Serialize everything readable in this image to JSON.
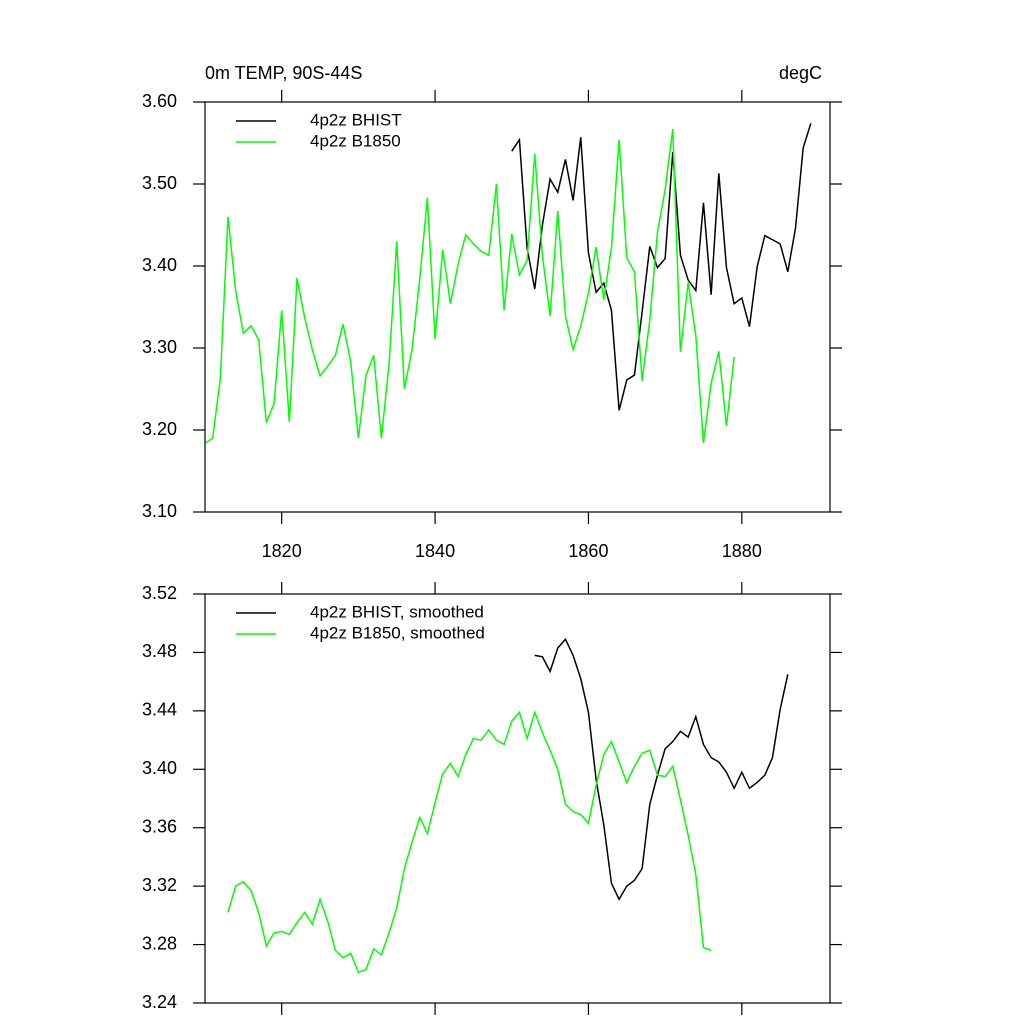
{
  "chart_data": [
    {
      "type": "line",
      "title": "0m TEMP, 90S-44S",
      "units_label": "degC",
      "x": [
        1810,
        1811,
        1812,
        1813,
        1814,
        1815,
        1816,
        1817,
        1818,
        1819,
        1820,
        1821,
        1822,
        1823,
        1824,
        1825,
        1826,
        1827,
        1828,
        1829,
        1830,
        1831,
        1832,
        1833,
        1834,
        1835,
        1836,
        1837,
        1838,
        1839,
        1840,
        1841,
        1842,
        1843,
        1844,
        1845,
        1846,
        1847,
        1848,
        1849,
        1850,
        1851,
        1852,
        1853,
        1854,
        1855,
        1856,
        1857,
        1858,
        1859,
        1860,
        1861,
        1862,
        1863,
        1864,
        1865,
        1866,
        1867,
        1868,
        1869,
        1870,
        1871,
        1872,
        1873,
        1874,
        1875,
        1876,
        1877,
        1878,
        1879,
        1880,
        1881,
        1882,
        1883,
        1884,
        1885,
        1886,
        1887,
        1888,
        1889
      ],
      "series": [
        {
          "name": "4p2z BHIST",
          "color": "#000000",
          "values": [
            null,
            null,
            null,
            null,
            null,
            null,
            null,
            null,
            null,
            null,
            null,
            null,
            null,
            null,
            null,
            null,
            null,
            null,
            null,
            null,
            null,
            null,
            null,
            null,
            null,
            null,
            null,
            null,
            null,
            null,
            null,
            null,
            null,
            null,
            null,
            null,
            null,
            null,
            null,
            null,
            3.54,
            3.554,
            3.422,
            3.372,
            3.45,
            3.506,
            3.49,
            3.53,
            3.48,
            3.557,
            3.416,
            3.368,
            3.379,
            3.346,
            3.224,
            3.261,
            3.267,
            3.344,
            3.424,
            3.398,
            3.409,
            3.539,
            3.413,
            3.383,
            3.37,
            3.477,
            3.365,
            3.513,
            3.398,
            3.354,
            3.361,
            3.326,
            3.399,
            3.437,
            3.432,
            3.427,
            3.393,
            3.446,
            3.544,
            3.574
          ]
        },
        {
          "name": "4p2z B1850",
          "color": "#00ff00",
          "values": [
            3.184,
            3.19,
            3.263,
            3.46,
            3.37,
            3.318,
            3.327,
            3.31,
            3.209,
            3.232,
            3.346,
            3.21,
            3.385,
            3.337,
            3.298,
            3.266,
            3.278,
            3.291,
            3.329,
            3.283,
            3.19,
            3.267,
            3.291,
            3.19,
            3.28,
            3.43,
            3.25,
            3.298,
            3.384,
            3.483,
            3.311,
            3.42,
            3.354,
            3.402,
            3.438,
            3.427,
            3.418,
            3.413,
            3.5,
            3.346,
            3.439,
            3.389,
            3.407,
            3.537,
            3.413,
            3.339,
            3.467,
            3.339,
            3.298,
            3.327,
            3.367,
            3.423,
            3.359,
            3.422,
            3.554,
            3.41,
            3.393,
            3.26,
            3.334,
            3.441,
            3.493,
            3.567,
            3.295,
            3.38,
            3.315,
            3.184,
            3.257,
            3.296,
            3.205,
            3.289,
            null,
            null,
            null,
            null,
            null,
            null,
            null,
            null,
            null,
            null
          ]
        }
      ],
      "xlim": [
        1810,
        1891.5
      ],
      "xticks": [
        1820,
        1840,
        1860,
        1880
      ],
      "ylim": [
        3.1,
        3.6
      ],
      "yticks": [
        {
          "value": 3.1,
          "label": "3.10"
        },
        {
          "value": 3.2,
          "label": "3.20"
        },
        {
          "value": 3.3,
          "label": "3.30"
        },
        {
          "value": 3.4,
          "label": "3.40"
        },
        {
          "value": 3.5,
          "label": "3.50"
        },
        {
          "value": 3.6,
          "label": "3.60"
        }
      ],
      "legend": "top-left"
    },
    {
      "type": "line",
      "x": [
        1813,
        1814,
        1815,
        1816,
        1817,
        1818,
        1819,
        1820,
        1821,
        1822,
        1823,
        1824,
        1825,
        1826,
        1827,
        1828,
        1829,
        1830,
        1831,
        1832,
        1833,
        1834,
        1835,
        1836,
        1837,
        1838,
        1839,
        1840,
        1841,
        1842,
        1843,
        1844,
        1845,
        1846,
        1847,
        1848,
        1849,
        1850,
        1851,
        1852,
        1853,
        1854,
        1855,
        1856,
        1857,
        1858,
        1859,
        1860,
        1861,
        1862,
        1863,
        1864,
        1865,
        1866,
        1867,
        1868,
        1869,
        1870,
        1871,
        1872,
        1873,
        1874,
        1875,
        1876,
        1877,
        1878,
        1879,
        1880,
        1881,
        1882,
        1883,
        1884,
        1885,
        1886
      ],
      "series": [
        {
          "name": "4p2z BHIST, smoothed",
          "color": "#000000",
          "values": [
            null,
            null,
            null,
            null,
            null,
            null,
            null,
            null,
            null,
            null,
            null,
            null,
            null,
            null,
            null,
            null,
            null,
            null,
            null,
            null,
            null,
            null,
            null,
            null,
            null,
            null,
            null,
            null,
            null,
            null,
            null,
            null,
            null,
            null,
            null,
            null,
            null,
            null,
            null,
            null,
            3.478,
            3.477,
            3.467,
            3.483,
            3.489,
            3.478,
            3.462,
            3.439,
            3.393,
            3.362,
            3.322,
            3.311,
            3.32,
            3.324,
            3.332,
            3.376,
            3.396,
            3.414,
            3.419,
            3.426,
            3.422,
            3.436,
            3.417,
            3.408,
            3.405,
            3.398,
            3.387,
            3.398,
            3.387,
            3.391,
            3.396,
            3.408,
            3.441,
            3.465
          ]
        },
        {
          "name": "4p2z B1850, smoothed",
          "color": "#00ff00",
          "values": [
            3.302,
            3.32,
            3.323,
            3.317,
            3.302,
            3.279,
            3.288,
            3.289,
            3.287,
            3.295,
            3.302,
            3.294,
            3.311,
            3.296,
            3.276,
            3.271,
            3.274,
            3.261,
            3.263,
            3.277,
            3.273,
            3.288,
            3.305,
            3.332,
            3.35,
            3.367,
            3.356,
            3.377,
            3.397,
            3.404,
            3.395,
            3.41,
            3.421,
            3.42,
            3.427,
            3.42,
            3.417,
            3.433,
            3.439,
            3.421,
            3.439,
            3.425,
            3.413,
            3.4,
            3.376,
            3.371,
            3.369,
            3.363,
            3.389,
            3.41,
            3.419,
            3.405,
            3.391,
            3.402,
            3.411,
            3.413,
            3.396,
            3.395,
            3.402,
            3.379,
            3.355,
            3.328,
            3.278,
            3.276,
            null,
            null,
            null,
            null,
            null,
            null,
            null,
            null,
            null,
            null
          ]
        }
      ],
      "xlim": [
        1810,
        1891.5
      ],
      "xticks": [
        1820,
        1840,
        1860,
        1880
      ],
      "ylim": [
        3.24,
        3.52
      ],
      "yticks": [
        3.24,
        3.28,
        3.32,
        3.36,
        {
          "value": 3.4,
          "label": "3.40"
        },
        3.44,
        3.48,
        3.52
      ],
      "legend": "top-left"
    }
  ]
}
